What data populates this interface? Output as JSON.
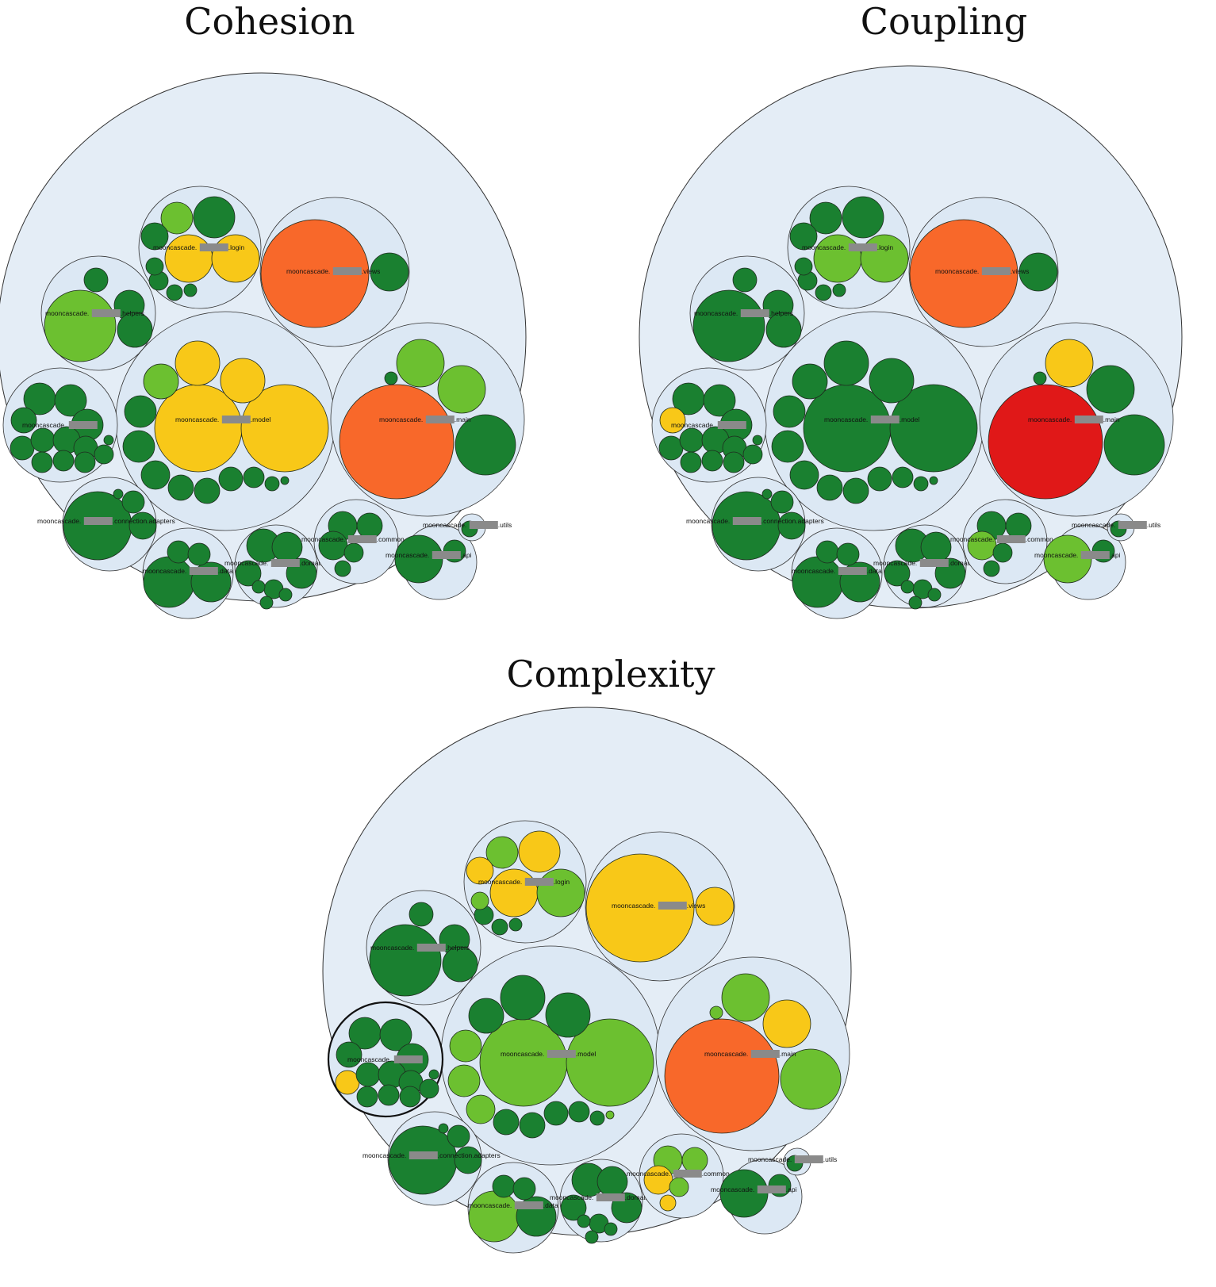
{
  "titles": {
    "cohesion": "Cohesion",
    "coupling": "Coupling",
    "complexity": "Complexity"
  },
  "label_prefix": "mooncascade.",
  "colors": {
    "dark_green": "#1a8030",
    "light_green": "#6cc030",
    "yellow": "#f8c818",
    "orange": "#f8682a",
    "red": "#e01818",
    "container_fill": "#dce8f4",
    "outline": "#333333"
  },
  "panels": [
    {
      "metric": "cohesion",
      "packages": [
        {
          "name": "login",
          "label": ".login",
          "colors": [
            "light_green",
            "dark_green",
            "dark_green",
            "yellow",
            "yellow",
            "dark_green",
            "dark_green",
            "dark_green",
            "dark_green"
          ]
        },
        {
          "name": "views",
          "label": ".views",
          "colors": [
            "orange",
            "dark_green"
          ]
        },
        {
          "name": "helpers",
          "label": ".helpers",
          "colors": [
            "light_green",
            "dark_green",
            "dark_green",
            "dark_green"
          ]
        },
        {
          "name": "model",
          "label": ".model",
          "colors": [
            "yellow",
            "yellow",
            "yellow",
            "yellow",
            "light_green",
            "dark_green",
            "dark_green",
            "dark_green",
            "dark_green",
            "dark_green",
            "dark_green",
            "dark_green",
            "dark_green",
            "dark_green"
          ]
        },
        {
          "name": "main",
          "label": ".main",
          "colors": [
            "orange",
            "light_green",
            "light_green",
            "dark_green",
            "dark_green"
          ]
        },
        {
          "name": "root",
          "label": "",
          "colors": [
            "dark_green",
            "dark_green",
            "dark_green",
            "dark_green",
            "dark_green",
            "dark_green",
            "dark_green",
            "dark_green",
            "dark_green",
            "dark_green",
            "dark_green",
            "dark_green",
            "dark_green"
          ]
        },
        {
          "name": "connection.adapters",
          "label": ".connection.adapters",
          "colors": [
            "dark_green",
            "dark_green",
            "dark_green",
            "dark_green"
          ]
        },
        {
          "name": "data",
          "label": ".data",
          "colors": [
            "dark_green",
            "dark_green",
            "dark_green",
            "dark_green"
          ]
        },
        {
          "name": "domain",
          "label": ".domain",
          "colors": [
            "dark_green",
            "dark_green",
            "dark_green",
            "dark_green",
            "dark_green",
            "dark_green",
            "dark_green",
            "dark_green"
          ]
        },
        {
          "name": "common",
          "label": ".common",
          "colors": [
            "dark_green",
            "dark_green",
            "dark_green",
            "dark_green",
            "dark_green"
          ]
        },
        {
          "name": "api",
          "label": ".api",
          "colors": [
            "dark_green",
            "dark_green"
          ]
        },
        {
          "name": "utils",
          "label": ".utils",
          "colors": [
            "dark_green"
          ]
        }
      ]
    },
    {
      "metric": "coupling",
      "packages": [
        {
          "name": "login",
          "label": ".login",
          "colors": [
            "dark_green",
            "dark_green",
            "dark_green",
            "light_green",
            "light_green",
            "dark_green",
            "dark_green",
            "dark_green",
            "dark_green"
          ]
        },
        {
          "name": "views",
          "label": ".views",
          "colors": [
            "orange",
            "dark_green"
          ]
        },
        {
          "name": "helpers",
          "label": ".helpers",
          "colors": [
            "dark_green",
            "dark_green",
            "dark_green",
            "dark_green"
          ]
        },
        {
          "name": "model",
          "label": ".model",
          "colors": [
            "dark_green",
            "dark_green",
            "dark_green",
            "dark_green",
            "dark_green",
            "dark_green",
            "dark_green",
            "dark_green",
            "dark_green",
            "dark_green",
            "dark_green",
            "dark_green",
            "dark_green",
            "dark_green"
          ]
        },
        {
          "name": "main",
          "label": ".main",
          "colors": [
            "red",
            "yellow",
            "dark_green",
            "dark_green",
            "dark_green"
          ]
        },
        {
          "name": "root",
          "label": "",
          "colors": [
            "dark_green",
            "dark_green",
            "dark_green",
            "yellow",
            "dark_green",
            "dark_green",
            "dark_green",
            "dark_green",
            "dark_green",
            "dark_green",
            "dark_green",
            "dark_green",
            "dark_green"
          ]
        },
        {
          "name": "connection.adapters",
          "label": ".connection.adapters",
          "colors": [
            "dark_green",
            "dark_green",
            "dark_green",
            "dark_green"
          ]
        },
        {
          "name": "data",
          "label": ".data",
          "colors": [
            "dark_green",
            "dark_green",
            "dark_green",
            "dark_green"
          ]
        },
        {
          "name": "domain",
          "label": ".domain",
          "colors": [
            "dark_green",
            "dark_green",
            "dark_green",
            "dark_green",
            "dark_green",
            "dark_green",
            "dark_green",
            "dark_green"
          ]
        },
        {
          "name": "common",
          "label": ".common",
          "colors": [
            "dark_green",
            "dark_green",
            "light_green",
            "dark_green",
            "dark_green"
          ]
        },
        {
          "name": "api",
          "label": ".api",
          "colors": [
            "light_green",
            "dark_green"
          ]
        },
        {
          "name": "utils",
          "label": ".utils",
          "colors": [
            "dark_green"
          ]
        }
      ]
    },
    {
      "metric": "complexity",
      "packages": [
        {
          "name": "login",
          "label": ".login",
          "colors": [
            "light_green",
            "yellow",
            "yellow",
            "yellow",
            "light_green",
            "dark_green",
            "dark_green",
            "dark_green",
            "light_green"
          ]
        },
        {
          "name": "views",
          "label": ".views",
          "colors": [
            "yellow",
            "yellow"
          ]
        },
        {
          "name": "helpers",
          "label": ".helpers",
          "colors": [
            "dark_green",
            "dark_green",
            "dark_green",
            "dark_green"
          ]
        },
        {
          "name": "model",
          "label": ".model",
          "colors": [
            "light_green",
            "light_green",
            "dark_green",
            "dark_green",
            "dark_green",
            "light_green",
            "light_green",
            "light_green",
            "dark_green",
            "dark_green",
            "dark_green",
            "dark_green",
            "dark_green",
            "light_green"
          ]
        },
        {
          "name": "main",
          "label": ".main",
          "colors": [
            "orange",
            "light_green",
            "yellow",
            "light_green",
            "light_green"
          ]
        },
        {
          "name": "root",
          "label": "",
          "colors": [
            "dark_green",
            "dark_green",
            "dark_green",
            "dark_green",
            "yellow",
            "dark_green",
            "dark_green",
            "dark_green",
            "dark_green",
            "dark_green",
            "dark_green",
            "dark_green",
            "dark_green"
          ]
        },
        {
          "name": "connection.adapters",
          "label": ".connection.adapters",
          "colors": [
            "dark_green",
            "dark_green",
            "dark_green",
            "dark_green"
          ]
        },
        {
          "name": "data",
          "label": ".data",
          "colors": [
            "light_green",
            "dark_green",
            "dark_green",
            "dark_green"
          ]
        },
        {
          "name": "domain",
          "label": ".domain",
          "colors": [
            "dark_green",
            "dark_green",
            "dark_green",
            "dark_green",
            "dark_green",
            "dark_green",
            "dark_green",
            "dark_green"
          ]
        },
        {
          "name": "common",
          "label": ".common",
          "colors": [
            "light_green",
            "light_green",
            "yellow",
            "light_green",
            "yellow"
          ]
        },
        {
          "name": "api",
          "label": ".api",
          "colors": [
            "dark_green",
            "dark_green"
          ]
        },
        {
          "name": "utils",
          "label": ".utils",
          "colors": [
            "dark_green"
          ]
        }
      ]
    }
  ]
}
